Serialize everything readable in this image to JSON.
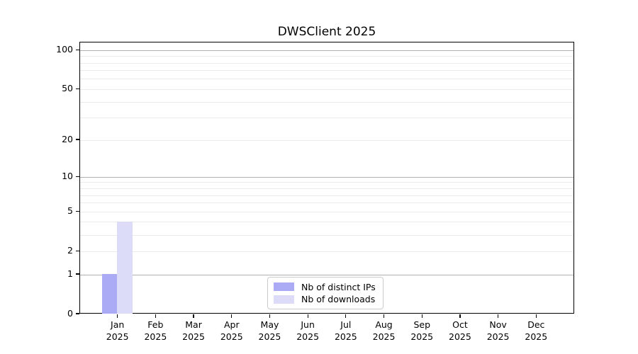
{
  "title": "DWSClient 2025",
  "colors": {
    "axis": "#000000",
    "grid_major": "#b0b0b0",
    "grid_minor": "#eaeaea",
    "legend_border": "#cccccc",
    "distinct_ips_bar": "#aaaaf5",
    "downloads_bar": "#dcdcf8"
  },
  "chart_data": {
    "type": "bar",
    "title": "DWSClient 2025",
    "scale": "log1p",
    "grid": true,
    "legend_position": "lower center",
    "ylim": [
      0,
      115
    ],
    "xlabel": "",
    "ylabel": "",
    "categories": [
      {
        "month": "Jan",
        "year": "2025"
      },
      {
        "month": "Feb",
        "year": "2025"
      },
      {
        "month": "Mar",
        "year": "2025"
      },
      {
        "month": "Apr",
        "year": "2025"
      },
      {
        "month": "May",
        "year": "2025"
      },
      {
        "month": "Jun",
        "year": "2025"
      },
      {
        "month": "Jul",
        "year": "2025"
      },
      {
        "month": "Aug",
        "year": "2025"
      },
      {
        "month": "Sep",
        "year": "2025"
      },
      {
        "month": "Oct",
        "year": "2025"
      },
      {
        "month": "Nov",
        "year": "2025"
      },
      {
        "month": "Dec",
        "year": "2025"
      }
    ],
    "series": [
      {
        "name": "Nb of distinct IPs",
        "color": "#aaaaf5",
        "values": [
          1,
          0,
          0,
          0,
          0,
          0,
          0,
          0,
          0,
          0,
          0,
          0
        ]
      },
      {
        "name": "Nb of downloads",
        "color": "#dcdcf8",
        "values": [
          4,
          0,
          0,
          0,
          0,
          0,
          0,
          0,
          0,
          0,
          0,
          0
        ]
      }
    ],
    "y_ticks": [
      0,
      1,
      2,
      5,
      10,
      20,
      50,
      100
    ],
    "y_major_gridlines": [
      1,
      10,
      100
    ],
    "y_minor_gridlines": [
      2,
      3,
      4,
      5,
      6,
      7,
      8,
      9,
      20,
      30,
      40,
      50,
      60,
      70,
      80,
      90
    ]
  }
}
